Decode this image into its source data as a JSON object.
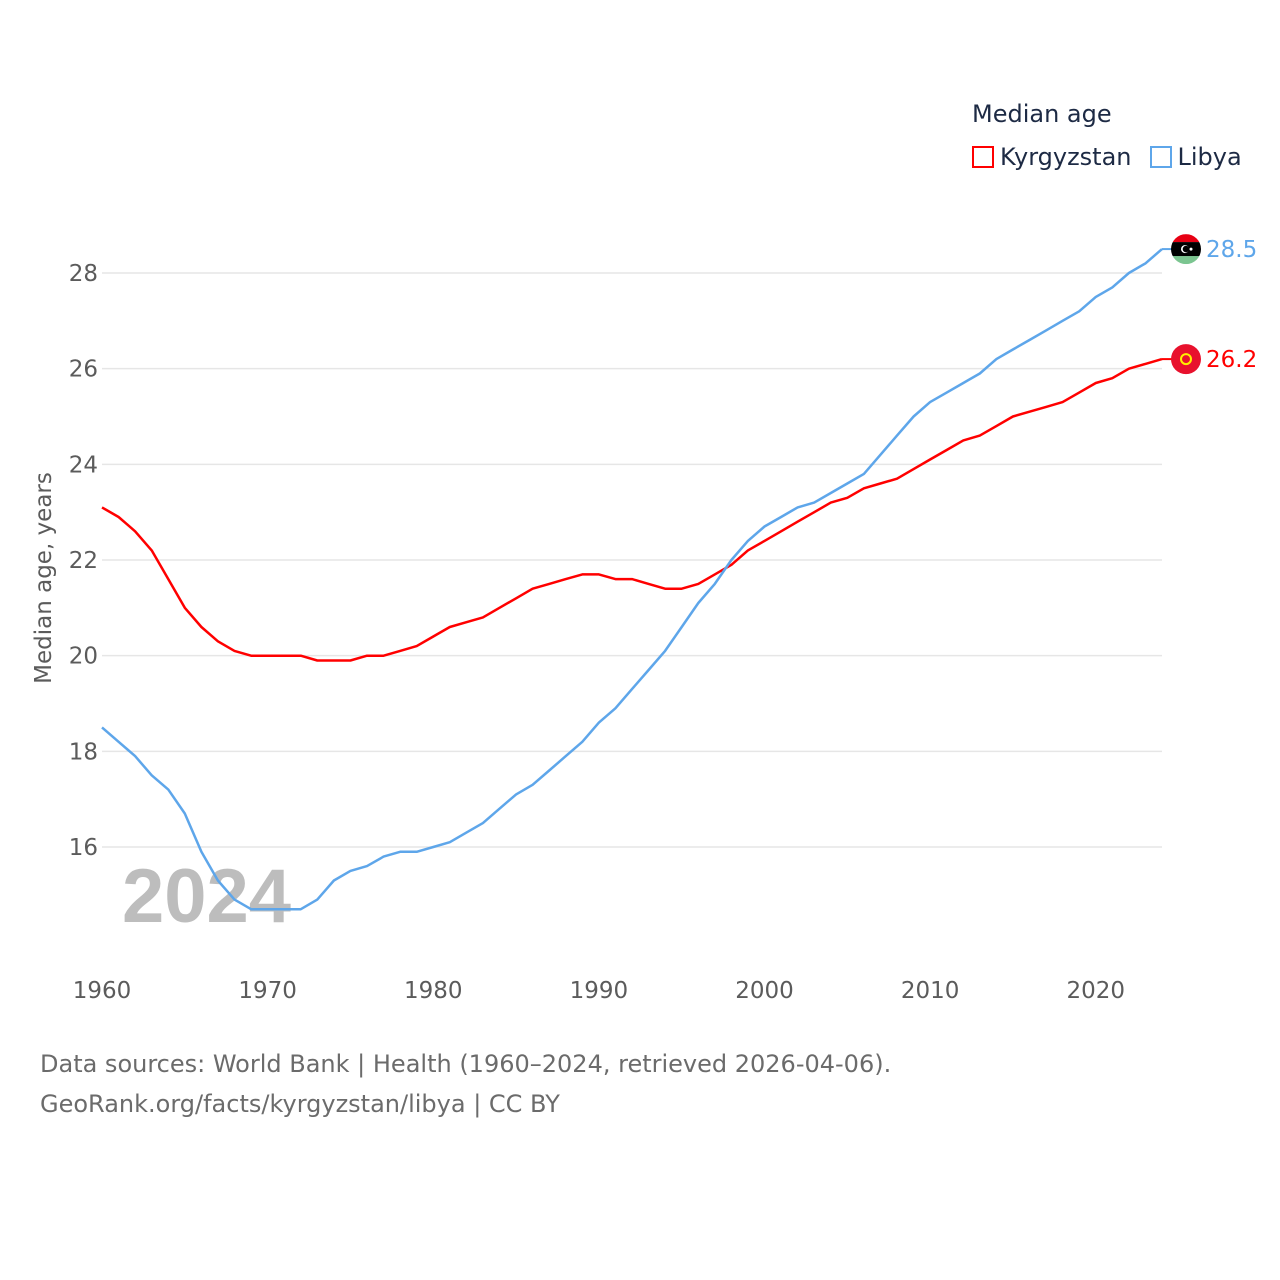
{
  "chart_data": {
    "type": "line",
    "title": "Median age",
    "ylabel": "Median age, years",
    "xlabel": "",
    "overlay_year": "2024",
    "xlim": [
      1960,
      2024
    ],
    "ylim": [
      14,
      29
    ],
    "x_ticks": [
      "1960",
      "1970",
      "1980",
      "1990",
      "2000",
      "2010",
      "2020"
    ],
    "y_ticks": [
      "16",
      "18",
      "20",
      "22",
      "24",
      "26",
      "28"
    ],
    "grid": true,
    "legend_placement": "top-right",
    "x": [
      1960,
      1961,
      1962,
      1963,
      1964,
      1965,
      1966,
      1967,
      1968,
      1969,
      1970,
      1971,
      1972,
      1973,
      1974,
      1975,
      1976,
      1977,
      1978,
      1979,
      1980,
      1981,
      1982,
      1983,
      1984,
      1985,
      1986,
      1987,
      1988,
      1989,
      1990,
      1991,
      1992,
      1993,
      1994,
      1995,
      1996,
      1997,
      1998,
      1999,
      2000,
      2001,
      2002,
      2003,
      2004,
      2005,
      2006,
      2007,
      2008,
      2009,
      2010,
      2011,
      2012,
      2013,
      2014,
      2015,
      2016,
      2017,
      2018,
      2019,
      2020,
      2021,
      2022,
      2023,
      2024
    ],
    "series": [
      {
        "name": "Kyrgyzstan",
        "color": "#ff0000",
        "end_label": "26.2",
        "values": [
          23.1,
          22.9,
          22.6,
          22.2,
          21.6,
          21.0,
          20.6,
          20.3,
          20.1,
          20.0,
          20.0,
          20.0,
          20.0,
          19.9,
          19.9,
          19.9,
          20.0,
          20.0,
          20.1,
          20.2,
          20.4,
          20.6,
          20.7,
          20.8,
          21.0,
          21.2,
          21.4,
          21.5,
          21.6,
          21.7,
          21.7,
          21.6,
          21.6,
          21.5,
          21.4,
          21.4,
          21.5,
          21.7,
          21.9,
          22.2,
          22.4,
          22.6,
          22.8,
          23.0,
          23.2,
          23.3,
          23.5,
          23.6,
          23.7,
          23.9,
          24.1,
          24.3,
          24.5,
          24.6,
          24.8,
          25.0,
          25.1,
          25.2,
          25.3,
          25.5,
          25.7,
          25.8,
          26.0,
          26.1,
          26.2
        ]
      },
      {
        "name": "Libya",
        "color": "#5ea6ea",
        "end_label": "28.5",
        "values": [
          18.5,
          18.2,
          17.9,
          17.5,
          17.2,
          16.7,
          15.9,
          15.3,
          14.9,
          14.7,
          14.7,
          14.7,
          14.7,
          14.9,
          15.3,
          15.5,
          15.6,
          15.8,
          15.9,
          15.9,
          16.0,
          16.1,
          16.3,
          16.5,
          16.8,
          17.1,
          17.3,
          17.6,
          17.9,
          18.2,
          18.6,
          18.9,
          19.3,
          19.7,
          20.1,
          20.6,
          21.1,
          21.5,
          22.0,
          22.4,
          22.7,
          22.9,
          23.1,
          23.2,
          23.4,
          23.6,
          23.8,
          24.2,
          24.6,
          25.0,
          25.3,
          25.5,
          25.7,
          25.9,
          26.2,
          26.4,
          26.6,
          26.8,
          27.0,
          27.2,
          27.5,
          27.7,
          28.0,
          28.2,
          28.5
        ]
      }
    ]
  },
  "footer": {
    "line1": "Data sources: World Bank | Health (1960–2024, retrieved 2026-04-06).",
    "line2": "GeoRank.org/facts/kyrgyzstan/libya | CC BY"
  }
}
